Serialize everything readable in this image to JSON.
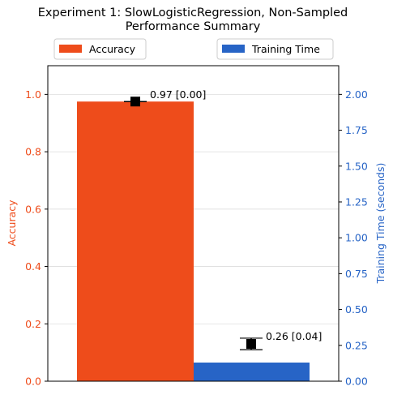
{
  "colors": {
    "accuracy": "#ee4c1b",
    "time": "#2764c6",
    "marker": "#000000",
    "grid": "#dddddd",
    "axis": "#000000"
  },
  "chart_data": {
    "type": "bar",
    "title": "Experiment 1: SlowLogisticRegression, Non-Sampled\nPerformance Summary",
    "categories": [
      ""
    ],
    "series": [
      {
        "name": "Accuracy",
        "axis": "left",
        "values": [
          0.975
        ],
        "error": [
          0.0
        ],
        "label": "0.97 [0.00]"
      },
      {
        "name": "Training Time",
        "axis": "right",
        "values": [
          0.13
        ],
        "marker": [
          0.26
        ],
        "error": [
          0.04
        ],
        "label": "0.26 [0.04]"
      }
    ],
    "ylabel_left": "Accuracy",
    "ylabel_right": "Training Time (seconds)",
    "ylim_left": [
      0,
      1.1
    ],
    "ylim_right": [
      0,
      2.2
    ],
    "yticks_left": [
      "0.0",
      "0.2",
      "0.4",
      "0.6",
      "0.8",
      "1.0"
    ],
    "yticks_right": [
      "0.00",
      "0.25",
      "0.50",
      "0.75",
      "1.00",
      "1.25",
      "1.50",
      "1.75",
      "2.00"
    ],
    "grid": true,
    "legend": [
      {
        "name": "Accuracy",
        "placement": "top-left"
      },
      {
        "name": "Training Time",
        "placement": "top-right"
      }
    ]
  }
}
